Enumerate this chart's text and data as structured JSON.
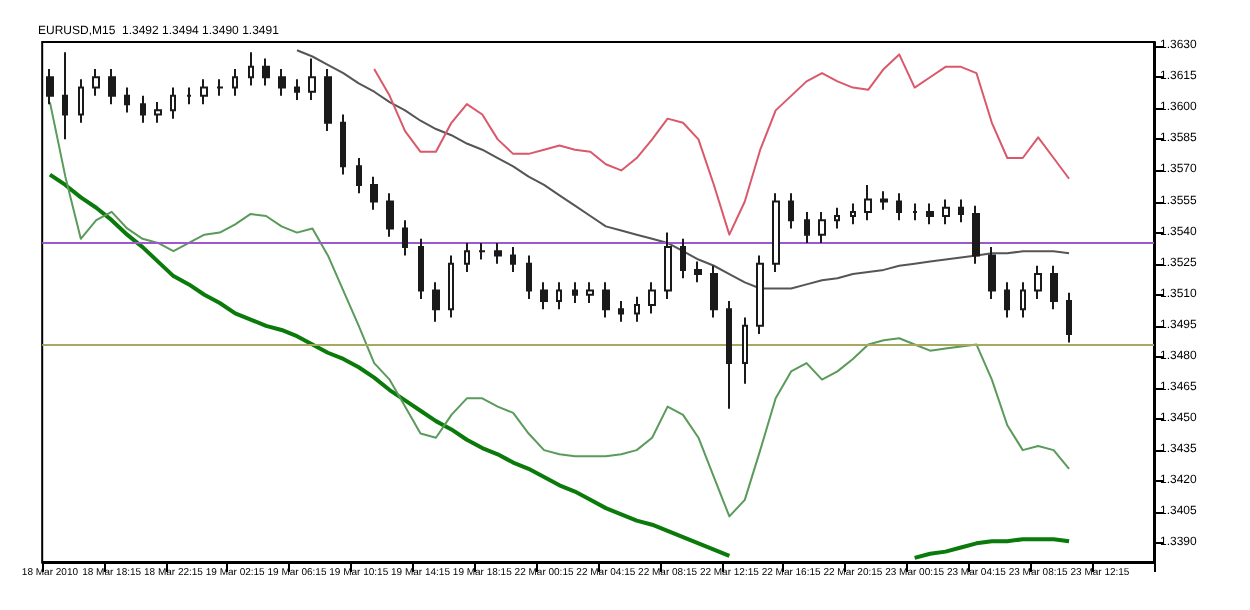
{
  "chart_data": {
    "type": "candlestick",
    "title": "EURUSD,M15  1.3492 1.3494 1.3490 1.3491",
    "categories": [
      "18 Mar 2010",
      null,
      null,
      null,
      "18 Mar 18:15",
      null,
      null,
      null,
      "18 Mar 22:15",
      null,
      null,
      null,
      "19 Mar 02:15",
      null,
      null,
      null,
      "19 Mar 06:15",
      null,
      null,
      null,
      "19 Mar 10:15",
      null,
      null,
      null,
      "19 Mar 14:15",
      null,
      null,
      null,
      "19 Mar 18:15",
      null,
      null,
      null,
      "22 Mar 00:15",
      null,
      null,
      null,
      "22 Mar 04:15",
      null,
      null,
      null,
      "22 Mar 08:15",
      null,
      null,
      null,
      "22 Mar 12:15",
      null,
      null,
      null,
      "22 Mar 16:15",
      null,
      null,
      null,
      "22 Mar 20:15",
      null,
      null,
      null,
      "23 Mar 00:15",
      null,
      null,
      null,
      "23 Mar 04:15",
      null,
      null,
      null,
      "23 Mar 08:15",
      null,
      null,
      null,
      "23 Mar 12:15",
      null,
      null,
      null
    ],
    "color": "#1a1a1a",
    "ohlc": [
      [
        1.3615,
        1.3619,
        1.3602,
        1.3606
      ],
      [
        1.3606,
        1.3627,
        1.3585,
        1.3597
      ],
      [
        1.3597,
        1.3614,
        1.3593,
        1.361
      ],
      [
        1.361,
        1.3619,
        1.3606,
        1.3615
      ],
      [
        1.3615,
        1.3619,
        1.3602,
        1.3606
      ],
      [
        1.3606,
        1.361,
        1.3598,
        1.3602
      ],
      [
        1.3602,
        1.3606,
        1.3593,
        1.3597
      ],
      [
        1.3597,
        1.3603,
        1.3593,
        1.3599
      ],
      [
        1.3599,
        1.361,
        1.3595,
        1.3606
      ],
      [
        1.3606,
        1.361,
        1.3602,
        1.3606
      ],
      [
        1.3606,
        1.3614,
        1.3602,
        1.361
      ],
      [
        1.361,
        1.3614,
        1.3606,
        1.361
      ],
      [
        1.361,
        1.3619,
        1.3606,
        1.3615
      ],
      [
        1.3615,
        1.3627,
        1.3611,
        1.362
      ],
      [
        1.362,
        1.3624,
        1.3611,
        1.3615
      ],
      [
        1.3615,
        1.3619,
        1.3606,
        1.361
      ],
      [
        1.361,
        1.3614,
        1.3604,
        1.3608
      ],
      [
        1.3608,
        1.3624,
        1.3604,
        1.3615
      ],
      [
        1.3615,
        1.3619,
        1.3589,
        1.3593
      ],
      [
        1.3593,
        1.3597,
        1.3568,
        1.3572
      ],
      [
        1.3572,
        1.3576,
        1.3559,
        1.3563
      ],
      [
        1.3563,
        1.3567,
        1.3551,
        1.3555
      ],
      [
        1.3555,
        1.3559,
        1.3538,
        1.3542
      ],
      [
        1.3542,
        1.3546,
        1.3529,
        1.3533
      ],
      [
        1.3533,
        1.3537,
        1.3508,
        1.3512
      ],
      [
        1.3512,
        1.3516,
        1.3497,
        1.3503
      ],
      [
        1.3503,
        1.3529,
        1.3499,
        1.3525
      ],
      [
        1.3525,
        1.3535,
        1.3521,
        1.3531
      ],
      [
        1.3531,
        1.3535,
        1.3527,
        1.3531
      ],
      [
        1.3531,
        1.3535,
        1.3525,
        1.3529
      ],
      [
        1.3529,
        1.3533,
        1.3521,
        1.3525
      ],
      [
        1.3525,
        1.3529,
        1.3508,
        1.3512
      ],
      [
        1.3512,
        1.3516,
        1.3503,
        1.3507
      ],
      [
        1.3507,
        1.3516,
        1.3503,
        1.3512
      ],
      [
        1.3512,
        1.3516,
        1.3506,
        1.351
      ],
      [
        1.351,
        1.3516,
        1.3506,
        1.3512
      ],
      [
        1.3512,
        1.3516,
        1.3499,
        1.3503
      ],
      [
        1.3503,
        1.3507,
        1.3497,
        1.3501
      ],
      [
        1.3501,
        1.3509,
        1.3497,
        1.3505
      ],
      [
        1.3505,
        1.3516,
        1.3501,
        1.3512
      ],
      [
        1.3512,
        1.354,
        1.3508,
        1.3533
      ],
      [
        1.3533,
        1.3537,
        1.3518,
        1.3522
      ],
      [
        1.3522,
        1.3526,
        1.3516,
        1.352
      ],
      [
        1.352,
        1.3524,
        1.3499,
        1.3503
      ],
      [
        1.3503,
        1.3507,
        1.3455,
        1.3477
      ],
      [
        1.3477,
        1.3499,
        1.3467,
        1.3495
      ],
      [
        1.3495,
        1.3529,
        1.3491,
        1.3525
      ],
      [
        1.3525,
        1.3559,
        1.3521,
        1.3555
      ],
      [
        1.3555,
        1.3559,
        1.3542,
        1.3546
      ],
      [
        1.3546,
        1.355,
        1.3535,
        1.3539
      ],
      [
        1.3539,
        1.355,
        1.3535,
        1.3546
      ],
      [
        1.3546,
        1.3552,
        1.3542,
        1.3548
      ],
      [
        1.3548,
        1.3554,
        1.3544,
        1.355
      ],
      [
        1.355,
        1.3563,
        1.3546,
        1.3556
      ],
      [
        1.3556,
        1.356,
        1.3551,
        1.3555
      ],
      [
        1.3555,
        1.3559,
        1.3546,
        1.355
      ],
      [
        1.355,
        1.3554,
        1.3546,
        1.355
      ],
      [
        1.355,
        1.3554,
        1.3544,
        1.3548
      ],
      [
        1.3548,
        1.3556,
        1.3544,
        1.3552
      ],
      [
        1.3552,
        1.3556,
        1.3545,
        1.3549
      ],
      [
        1.3549,
        1.3553,
        1.3525,
        1.3529
      ],
      [
        1.3529,
        1.3533,
        1.3508,
        1.3512
      ],
      [
        1.3512,
        1.3516,
        1.3499,
        1.3503
      ],
      [
        1.3503,
        1.3516,
        1.3499,
        1.3512
      ],
      [
        1.3512,
        1.3524,
        1.3508,
        1.352
      ],
      [
        1.352,
        1.3524,
        1.3503,
        1.3507
      ],
      [
        1.3507,
        1.3511,
        1.3487,
        1.3491
      ],
      null,
      null,
      null,
      null,
      null
    ],
    "series": [
      {
        "type": "line",
        "color": "#0a7a0a",
        "values": [
          1.3568,
          1.3563,
          1.3557,
          1.3552,
          1.3546,
          1.3539,
          1.3533,
          1.3526,
          1.3519,
          1.3515,
          1.351,
          1.3506,
          1.3501,
          1.3498,
          1.3495,
          1.3493,
          1.349,
          1.3486,
          1.3482,
          1.3479,
          1.3475,
          1.347,
          1.3464,
          1.3459,
          1.3454,
          1.3449,
          1.3445,
          1.344,
          1.3436,
          1.3433,
          1.3429,
          1.3426,
          1.3422,
          1.3418,
          1.3415,
          1.3411,
          1.3407,
          1.3404,
          1.3401,
          1.3399,
          1.3396,
          1.3393,
          1.339,
          1.3387,
          1.3384,
          null,
          null,
          null,
          null,
          null,
          null,
          null,
          null,
          null,
          null,
          null,
          1.3383,
          1.3385,
          1.3386,
          1.3388,
          1.339,
          1.3391,
          1.3391,
          1.3392,
          1.3392,
          1.3392,
          1.3391,
          null,
          null,
          null,
          null,
          null
        ]
      },
      {
        "type": "line",
        "color": "#555555",
        "values": [
          null,
          null,
          null,
          null,
          null,
          null,
          null,
          null,
          null,
          null,
          null,
          null,
          null,
          null,
          null,
          null,
          1.3628,
          1.3625,
          1.3621,
          1.3617,
          1.3612,
          1.3608,
          1.3603,
          1.3599,
          1.3594,
          1.359,
          1.3587,
          1.3583,
          1.358,
          1.3576,
          1.3572,
          1.3567,
          1.3563,
          1.3558,
          1.3553,
          1.3548,
          1.3543,
          1.3541,
          1.3539,
          1.3537,
          1.3535,
          1.3531,
          1.3527,
          1.3524,
          1.352,
          1.3516,
          1.3513,
          1.3513,
          1.3513,
          1.3515,
          1.3517,
          1.3518,
          1.352,
          1.3521,
          1.3522,
          1.3524,
          1.3525,
          1.3526,
          1.3527,
          1.3528,
          1.3529,
          1.353,
          1.353,
          1.3531,
          1.3531,
          1.3531,
          1.353,
          null,
          null,
          null,
          null,
          null
        ]
      },
      {
        "type": "line",
        "color": "#d9596a",
        "values": [
          null,
          null,
          null,
          null,
          null,
          null,
          null,
          null,
          null,
          null,
          null,
          null,
          null,
          null,
          null,
          null,
          null,
          null,
          null,
          null,
          null,
          1.3619,
          1.3606,
          1.3589,
          1.3579,
          1.3579,
          1.3593,
          1.3602,
          1.3597,
          1.3585,
          1.3578,
          1.3578,
          1.358,
          1.3582,
          1.358,
          1.3579,
          1.3573,
          1.357,
          1.3576,
          1.3585,
          1.3595,
          1.3593,
          1.3585,
          1.3563,
          1.3539,
          1.3555,
          1.358,
          1.3599,
          1.3606,
          1.3613,
          1.3617,
          1.3613,
          1.361,
          1.3609,
          1.3619,
          1.3626,
          1.361,
          1.3615,
          1.362,
          1.362,
          1.3617,
          1.3593,
          1.3576,
          1.3576,
          1.3586,
          1.3576,
          1.3566,
          null,
          null,
          null,
          null,
          null
        ]
      },
      {
        "type": "line",
        "color": "#5a9a5a",
        "values": [
          1.3603,
          1.3567,
          1.3537,
          1.3546,
          1.355,
          1.3542,
          1.3537,
          1.3535,
          1.3531,
          1.3535,
          1.3539,
          1.354,
          1.3544,
          1.3549,
          1.3548,
          1.3543,
          1.354,
          1.3542,
          1.3529,
          1.3512,
          1.3495,
          1.3477,
          1.3469,
          1.3456,
          1.3443,
          1.3441,
          1.3452,
          1.346,
          1.346,
          1.3456,
          1.3453,
          1.3443,
          1.3435,
          1.3433,
          1.3432,
          1.3432,
          1.3432,
          1.3433,
          1.3435,
          1.3441,
          1.3456,
          1.3452,
          1.3441,
          1.3422,
          1.3403,
          1.3411,
          1.3435,
          1.346,
          1.3473,
          1.3477,
          1.3469,
          1.3473,
          1.3479,
          1.3486,
          1.3488,
          1.3489,
          1.3486,
          1.3483,
          1.3484,
          1.3485,
          1.3486,
          1.3469,
          1.3447,
          1.3435,
          1.3437,
          1.3435,
          1.3426,
          null,
          null,
          null,
          null,
          null
        ]
      }
    ],
    "ref_lines": [
      {
        "axis": "y",
        "value": 1.3535,
        "color": "#9b59d0"
      },
      {
        "axis": "y",
        "value": 1.3486,
        "color": "#a8a860"
      }
    ],
    "ylim": [
      1.3381,
      1.3632
    ],
    "yticks": [
      {
        "value": 1.363,
        "label": "1.3630"
      },
      1.3615,
      {
        "value": 1.36,
        "label": "1.3600"
      },
      1.3585,
      {
        "value": 1.357,
        "label": "1.3570"
      },
      1.3555,
      {
        "value": 1.354,
        "label": "1.3540"
      },
      1.3525,
      {
        "value": 1.351,
        "label": "1.3510"
      },
      1.3495,
      {
        "value": 1.348,
        "label": "1.3480"
      },
      1.3465,
      {
        "value": 1.345,
        "label": "1.3450"
      },
      1.3435,
      {
        "value": 1.342,
        "label": "1.3420"
      },
      1.3405,
      {
        "value": 1.339,
        "label": "1.3390"
      }
    ],
    "grid": false
  }
}
